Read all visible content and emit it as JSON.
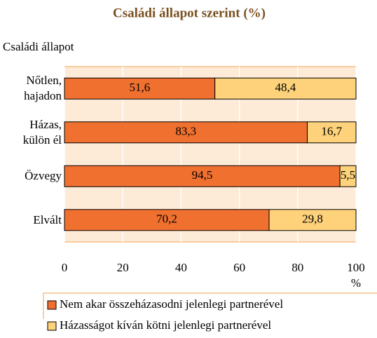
{
  "chart_data": {
    "type": "stacked-barh",
    "title": "Családi állapot szerint (%)",
    "y_label": "Családi állapot",
    "x_label": "%",
    "categories": [
      "Nőtlen, hajadon",
      "Házas, külön él",
      "Özvegy",
      "Elvált"
    ],
    "series": [
      {
        "name": "Nem akar összeházasodni jelenlegi partnerével",
        "color": "#f07030",
        "values": [
          51.6,
          83.3,
          94.5,
          70.2
        ],
        "value_labels": [
          "51,6",
          "83,3",
          "94,5",
          "70,2"
        ]
      },
      {
        "name": "Házasságot kíván kötni jelenlegi partnerével",
        "color": "#fdd27a",
        "values": [
          48.4,
          16.7,
          5.5,
          29.8
        ],
        "value_labels": [
          "48,4",
          "16,7",
          "5,5",
          "29,8"
        ]
      }
    ],
    "xlim": [
      0,
      100
    ],
    "xticks": [
      0,
      20,
      40,
      60,
      80,
      100
    ],
    "grid": true
  }
}
